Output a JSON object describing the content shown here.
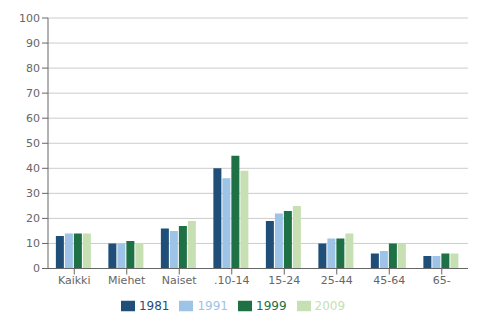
{
  "chart_data": {
    "type": "bar",
    "categories": [
      "Kaikki",
      "Miehet",
      "Naiset",
      ".10-14",
      "15-24",
      "25-44",
      "45-64",
      "65-"
    ],
    "series": [
      {
        "name": "1981",
        "color": "#1F4E79",
        "values": [
          13,
          10,
          16,
          40,
          19,
          10,
          6,
          5
        ]
      },
      {
        "name": "1991",
        "color": "#9DC3E6",
        "values": [
          14,
          10,
          15,
          36,
          22,
          12,
          7,
          5
        ]
      },
      {
        "name": "1999",
        "color": "#1E7145",
        "values": [
          14,
          11,
          17,
          45,
          23,
          12,
          10,
          6
        ]
      },
      {
        "name": "2009",
        "color": "#C6E0B4",
        "values": [
          14,
          10,
          19,
          39,
          25,
          14,
          10,
          6
        ]
      }
    ],
    "ylim": [
      0,
      100
    ],
    "yticks": [
      0,
      10,
      20,
      30,
      40,
      50,
      60,
      70,
      80,
      90,
      100
    ],
    "grid": true,
    "legend": "bottom"
  }
}
